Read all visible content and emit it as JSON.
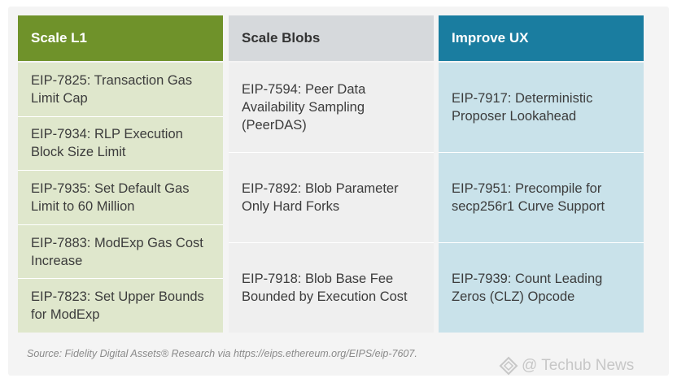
{
  "columns": [
    {
      "header": "Scale L1",
      "items": [
        "EIP-7825: Transaction Gas Limit Cap",
        "EIP-7934: RLP Execution Block Size Limit",
        "EIP-7935: Set Default Gas Limit to 60 Million",
        "EIP-7883: ModExp Gas Cost Increase",
        "EIP-7823: Set Upper Bounds for ModExp"
      ]
    },
    {
      "header": "Scale Blobs",
      "items": [
        "EIP-7594: Peer Data Availability Sampling (PeerDAS)",
        "EIP-7892: Blob Parameter Only Hard Forks",
        "EIP-7918: Blob Base Fee Bounded by Execution Cost"
      ]
    },
    {
      "header": "Improve UX",
      "items": [
        "EIP-7917: Deterministic Proposer Lookahead",
        "EIP-7951: Precompile for secp256r1 Curve Support",
        "EIP-7939: Count Leading Zeros (CLZ) Opcode"
      ]
    }
  ],
  "source": "Source: Fidelity Digital Assets® Research via https://eips.ethereum.org/EIPS/eip-7607.",
  "watermark": "@ Techub News",
  "colors": {
    "scale_l1_header": "#6f922a",
    "scale_l1_body": "#dfe7cc",
    "scale_blobs_header": "#d6d9dc",
    "scale_blobs_body": "#efefef",
    "improve_ux_header": "#1a7da0",
    "improve_ux_body": "#c9e2ea"
  }
}
